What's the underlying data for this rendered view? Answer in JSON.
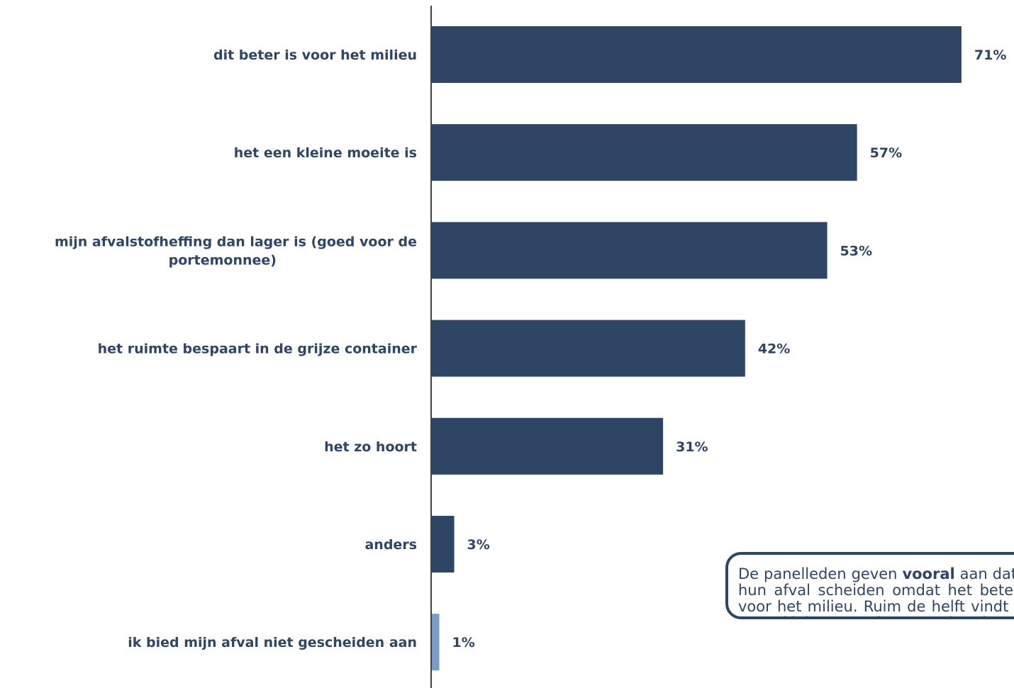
{
  "chart_data": {
    "type": "bar",
    "orientation": "horizontal",
    "categories": [
      "dit beter is voor het milieu",
      "het een kleine moeite is",
      "mijn afvalstofheffing dan lager is (goed voor de portemonnee)",
      "het ruimte bespaart in de grijze container",
      "het zo hoort",
      "anders",
      "ik bied mijn afval niet gescheiden aan"
    ],
    "category_label_lines": [
      [
        "dit beter is voor het milieu"
      ],
      [
        "het een kleine moeite is"
      ],
      [
        "mijn afvalstofheffing dan lager is (goed voor de",
        "portemonnee)"
      ],
      [
        "het ruimte bespaart in de grijze container"
      ],
      [
        "het zo hoort"
      ],
      [
        "anders"
      ],
      [
        "ik bied mijn afval niet gescheiden aan"
      ]
    ],
    "values": [
      71,
      57,
      53,
      42,
      31,
      3,
      1
    ],
    "value_labels": [
      "71%",
      "57%",
      "53%",
      "42%",
      "31%",
      "3%",
      "1%"
    ],
    "unit": "%",
    "xlim": [
      0,
      100
    ],
    "bar_colors": [
      "#2e4663",
      "#2e4663",
      "#2e4663",
      "#2e4663",
      "#2e4663",
      "#2e4663",
      "#7a9cc6"
    ],
    "grid": false,
    "legend": "none"
  },
  "callout": {
    "text_before": "De panelleden geven ",
    "bold": "vooral",
    "text_after": " aan dat ze hun afval scheiden omdat het beter is voor het milieu. Ruim de helft vindt het een kleine moeite en betalen ze hierdoor minder."
  },
  "colors": {
    "bar": "#2e4663",
    "bar_highlight": "#7a9cc6",
    "text": "#2e4663",
    "axis": "#2e4663"
  }
}
